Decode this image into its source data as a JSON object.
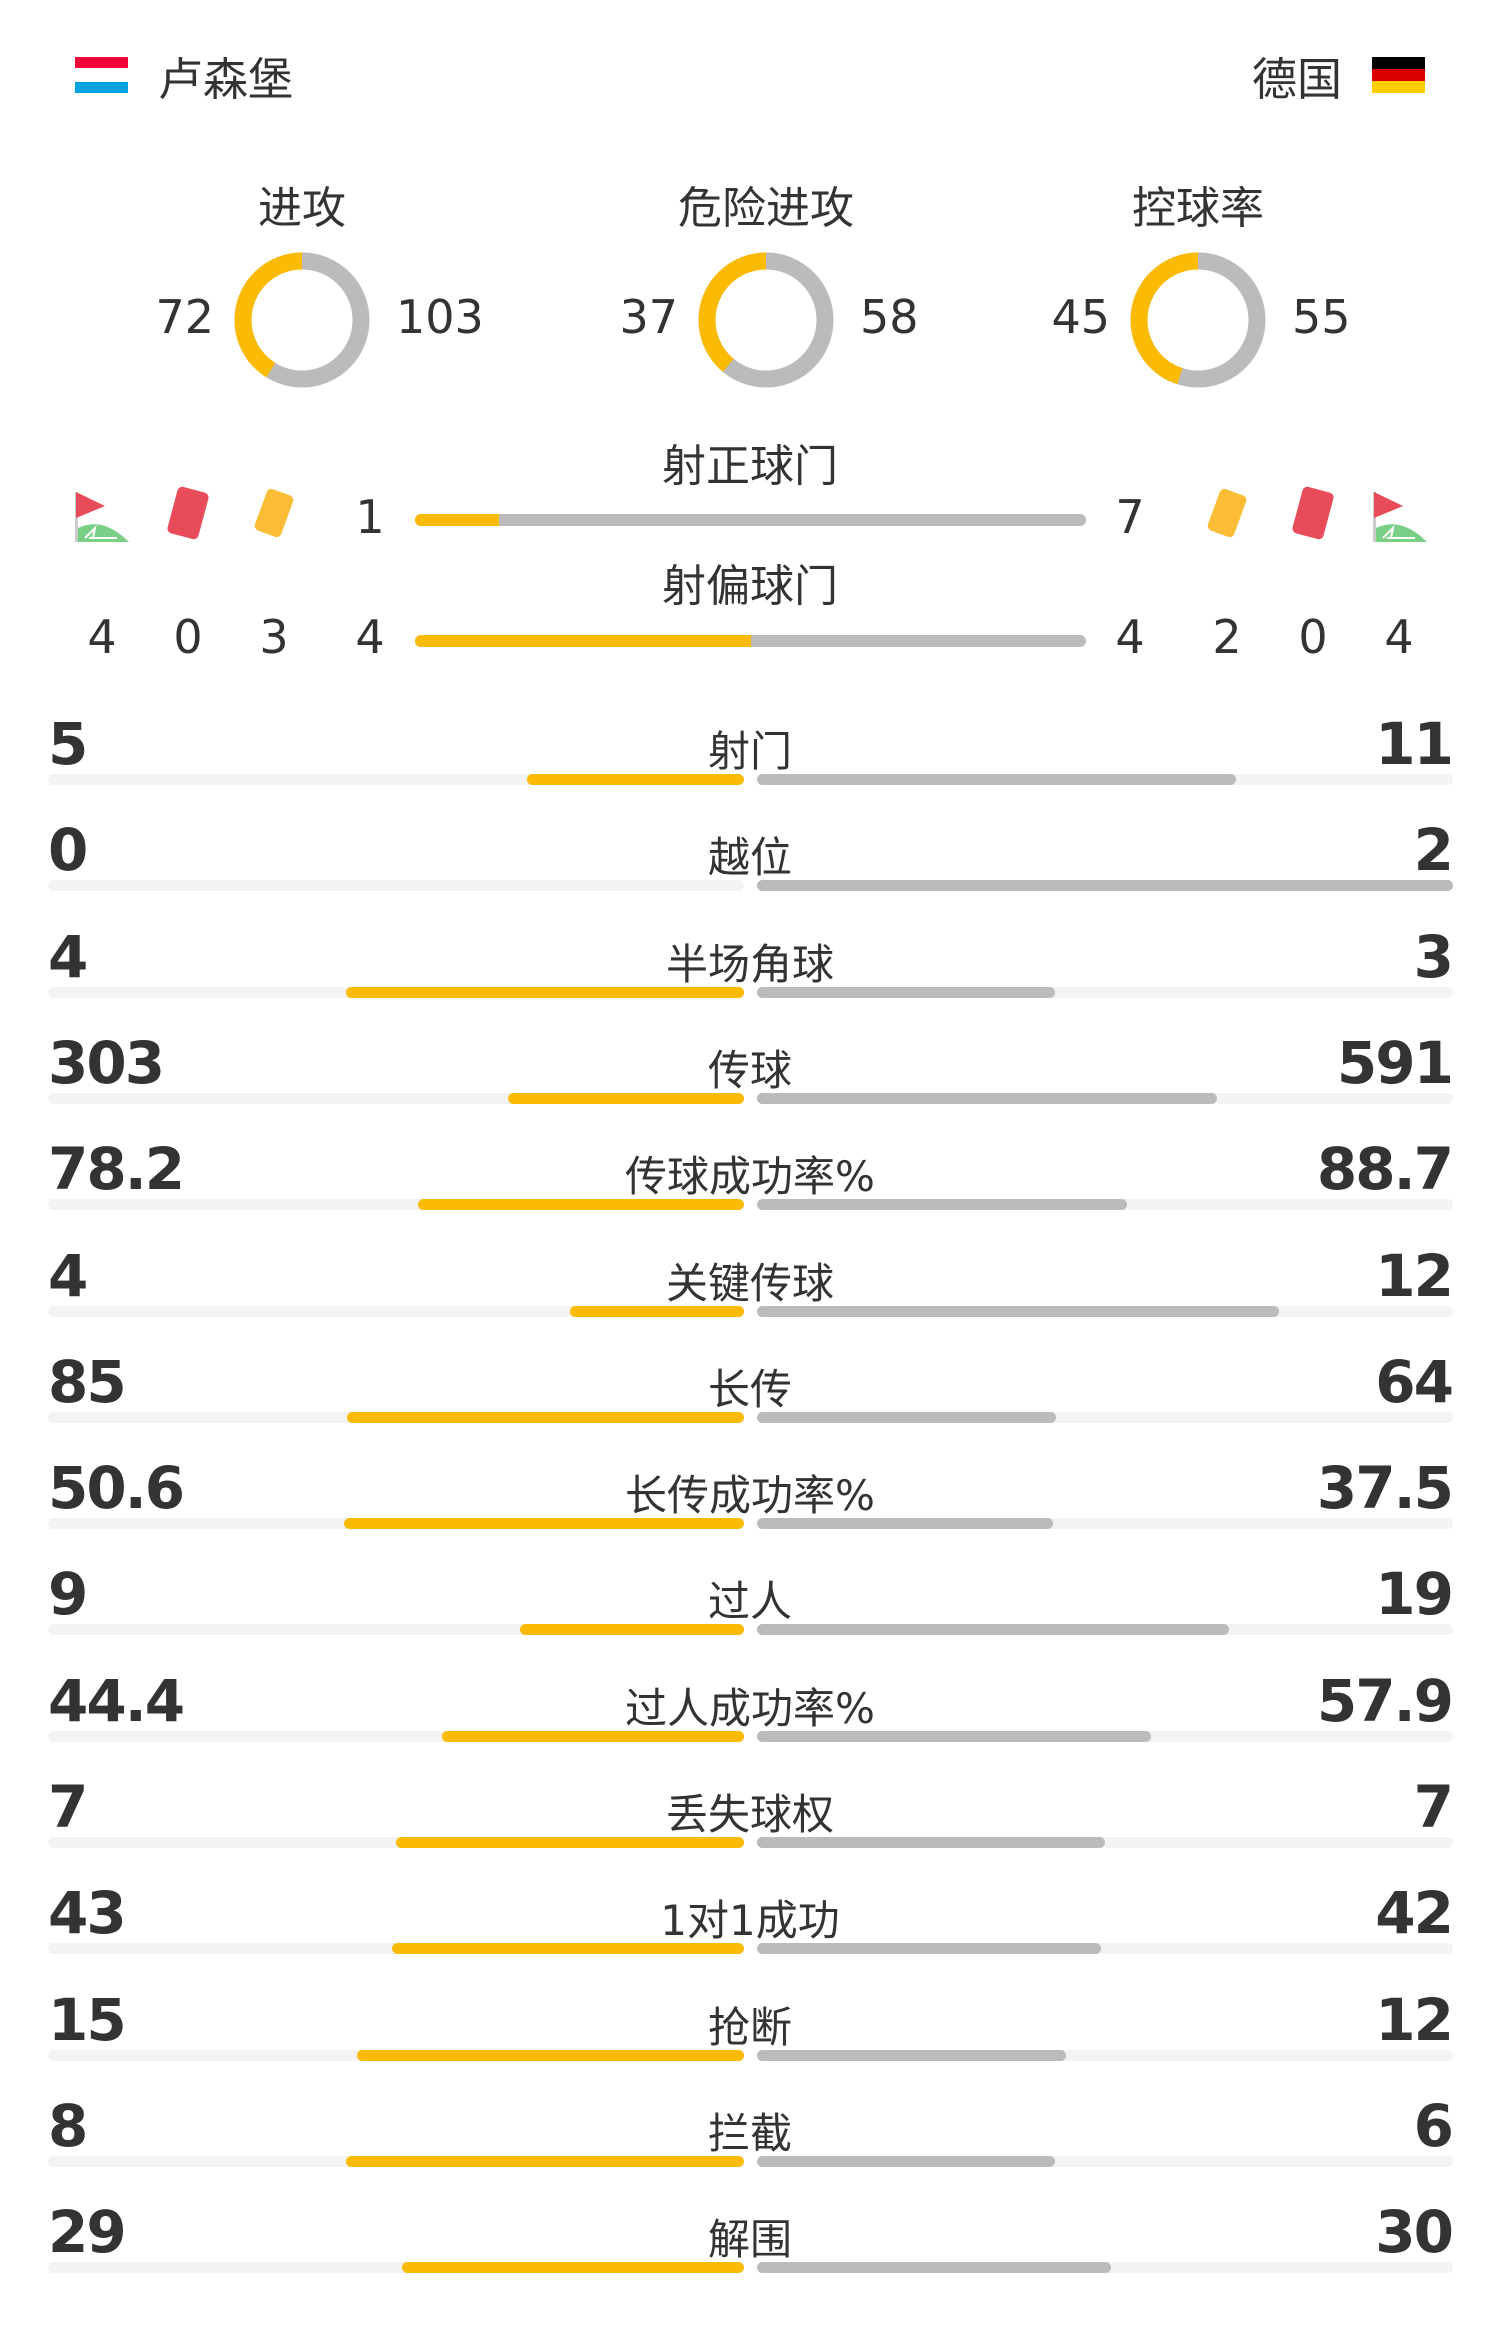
{
  "header": {
    "home": {
      "name": "卢森堡",
      "flag": [
        "#ef0538",
        "#ffffff",
        "#00a3e0"
      ]
    },
    "away": {
      "name": "德国",
      "flag": [
        "#000000",
        "#dd0000",
        "#ffce00"
      ]
    }
  },
  "colors": {
    "home": "#fbbb05",
    "away": "#bbbbbb",
    "track": "#f3f3f3"
  },
  "donuts": [
    {
      "title": "进攻",
      "home": 72,
      "away": 103
    },
    {
      "title": "危险进攻",
      "home": 37,
      "away": 58
    },
    {
      "title": "控球率",
      "home": 45,
      "away": 55
    }
  ],
  "shots_on": {
    "label": "射正球门",
    "home": 1,
    "away": 7
  },
  "shots_off": {
    "label": "射偏球门",
    "home": 4,
    "away": 4
  },
  "home_counts": {
    "corner-flag-icon": 4,
    "red-card-icon": 0,
    "yellow-card-icon": 3
  },
  "away_counts": {
    "yellow-card-icon": 2,
    "red-card-icon": 0,
    "corner-flag-icon": 4
  },
  "stats": [
    {
      "label": "射门",
      "home": "5",
      "away": "11"
    },
    {
      "label": "越位",
      "home": "0",
      "away": "2"
    },
    {
      "label": "半场角球",
      "home": "4",
      "away": "3"
    },
    {
      "label": "传球",
      "home": "303",
      "away": "591"
    },
    {
      "label": "传球成功率%",
      "home": "78.2",
      "away": "88.7"
    },
    {
      "label": "关键传球",
      "home": "4",
      "away": "12"
    },
    {
      "label": "长传",
      "home": "85",
      "away": "64"
    },
    {
      "label": "长传成功率%",
      "home": "50.6",
      "away": "37.5"
    },
    {
      "label": "过人",
      "home": "9",
      "away": "19"
    },
    {
      "label": "过人成功率%",
      "home": "44.4",
      "away": "57.9"
    },
    {
      "label": "丢失球权",
      "home": "7",
      "away": "7"
    },
    {
      "label": "1对1成功",
      "home": "43",
      "away": "42"
    },
    {
      "label": "抢断",
      "home": "15",
      "away": "12"
    },
    {
      "label": "拦截",
      "home": "8",
      "away": "6"
    },
    {
      "label": "解围",
      "home": "29",
      "away": "30"
    }
  ]
}
